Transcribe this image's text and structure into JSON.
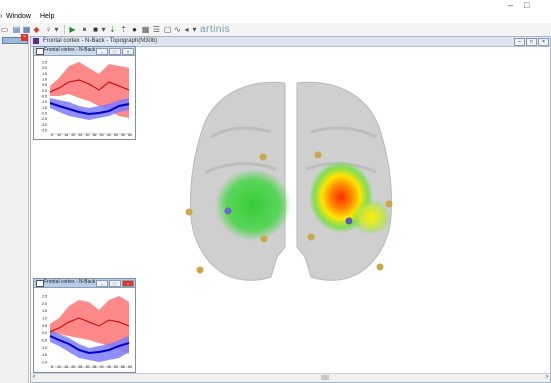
{
  "titlebar": {
    "minimize": "–",
    "maximize": "□"
  },
  "menu": [
    "Window",
    "Help"
  ],
  "toolbar": {
    "brand": "artinis"
  },
  "main_window": {
    "title": "Frontal cortex - N-Back - Topograph(M30b)"
  },
  "subwindows": [
    {
      "title": "Frontal cortex - N-Back - ...",
      "yticks": [
        "2.5",
        "2.0",
        "1.5",
        "1.0",
        "0.5",
        "0.0",
        "-0.5",
        "-1.0",
        "-1.5",
        "-2.0",
        "-2.5",
        "-3.0",
        "-3.5"
      ],
      "xticks": [
        "5",
        "10",
        "15",
        "20",
        "25",
        "30",
        "35",
        "40",
        "45",
        "50",
        "55",
        "60"
      ]
    },
    {
      "title": "Frontal cortex - N-Back - ...",
      "yticks": [
        "2.5",
        "2.0",
        "1.5",
        "1.0",
        "0.5",
        "0.0",
        "-0.5",
        "-1.0",
        "-1.5",
        "-2.0"
      ],
      "xticks": [
        "5",
        "10",
        "15",
        "20",
        "25",
        "30",
        "35",
        "40",
        "45",
        "50",
        "55",
        "60"
      ]
    }
  ],
  "colors": {
    "oxy_band": "#ff6b6b",
    "oxy_line": "#cc0000",
    "deoxy_band": "#7b7bff",
    "deoxy_line": "#0000cc",
    "brain": "#cfcfcf",
    "optode": "#c8a84a"
  }
}
